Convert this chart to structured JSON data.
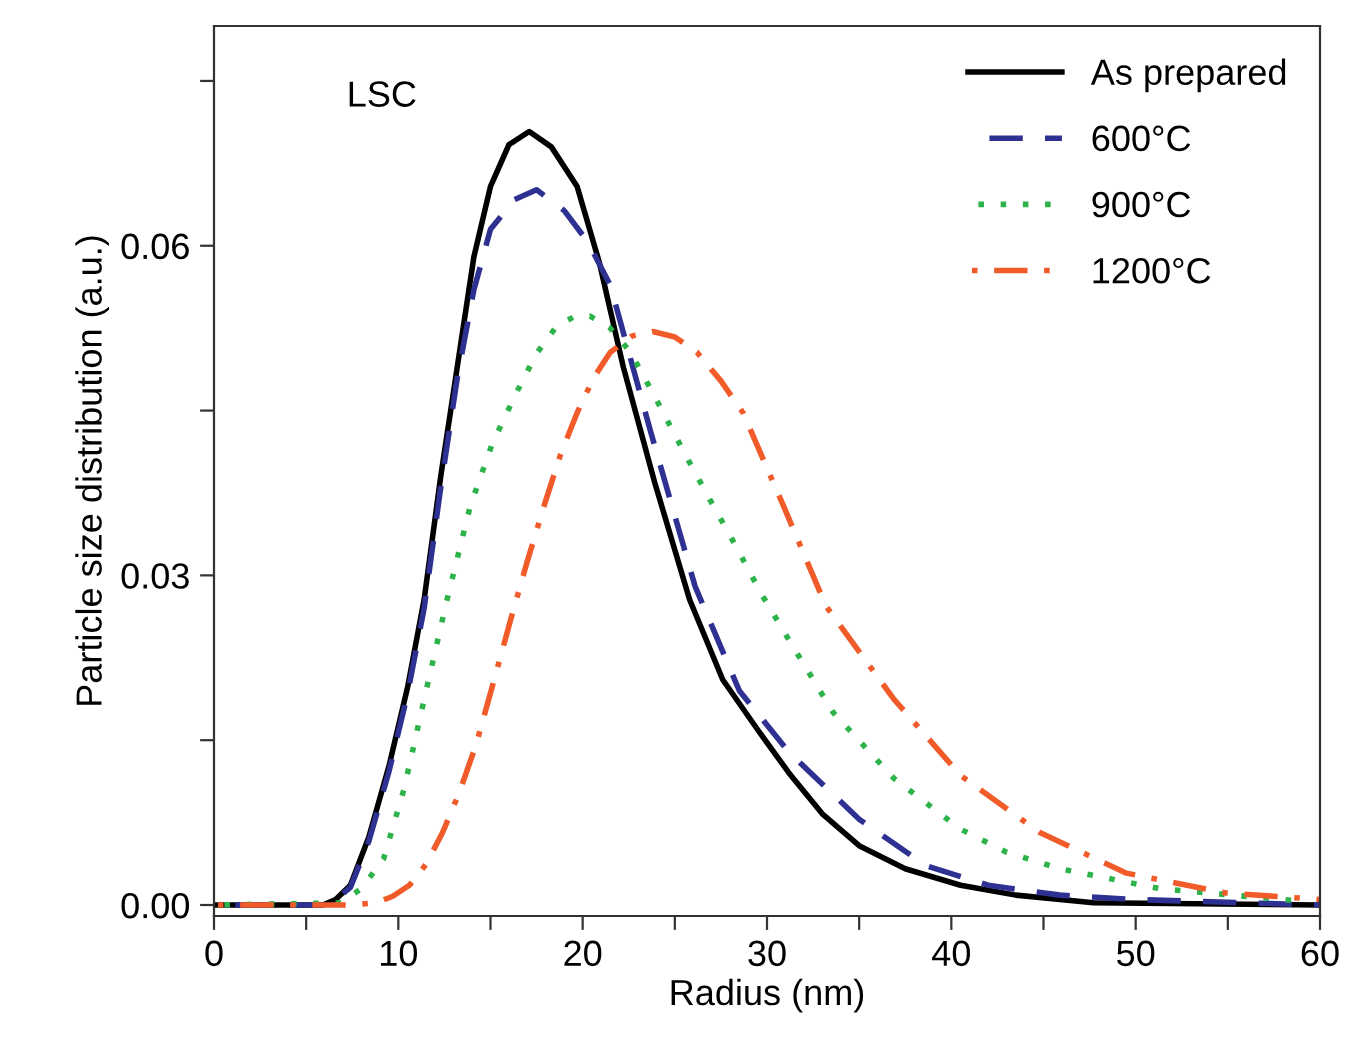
{
  "chart_data": {
    "type": "line",
    "xlabel": "Radius (nm)",
    "ylabel": "Particle size distribution (a.u.)",
    "annotations": [
      "LSC"
    ],
    "xlim": [
      0,
      60
    ],
    "ylim": [
      -0.001,
      0.08
    ],
    "xticks": [
      0,
      {
        "value": 5,
        "label": null
      },
      10,
      {
        "value": 15,
        "label": null
      },
      20,
      {
        "value": 25,
        "label": null
      },
      30,
      {
        "value": 35,
        "label": null
      },
      40,
      {
        "value": 45,
        "label": null
      },
      50,
      {
        "value": 55,
        "label": null
      },
      60
    ],
    "yticks": [
      {
        "value": 0,
        "label": "0.00"
      },
      {
        "value": 0.015,
        "label": null
      },
      {
        "value": 0.03,
        "label": "0.03"
      },
      {
        "value": 0.045,
        "label": null
      },
      {
        "value": 0.06,
        "label": "0.06"
      },
      {
        "value": 0.075,
        "label": null
      }
    ],
    "grid": false,
    "legend": "top right",
    "series": [
      {
        "name": "As prepared",
        "color": "#000000",
        "line_style": "solid",
        "x": [
          0,
          5.9,
          6.6,
          7.4,
          8.4,
          9.5,
          10.5,
          11.4,
          12.3,
          13.2,
          14.1,
          15,
          16,
          17.1,
          18.3,
          19.7,
          20.9,
          22.2,
          23.9,
          25.8,
          27.6,
          29.6,
          31.2,
          33,
          35,
          37.5,
          40.5,
          43.5,
          47.7,
          60
        ],
        "values": [
          0,
          0,
          0.0005,
          0.0018,
          0.0062,
          0.0127,
          0.0198,
          0.0278,
          0.039,
          0.049,
          0.059,
          0.0654,
          0.0692,
          0.0704,
          0.069,
          0.0654,
          0.0585,
          0.049,
          0.0385,
          0.0278,
          0.0205,
          0.0157,
          0.012,
          0.0083,
          0.0054,
          0.0033,
          0.0018,
          0.0009,
          0.0002,
          0
        ]
      },
      {
        "name": "600°C",
        "color": "#2e3192",
        "line_style": "dashed",
        "x": [
          0,
          5.9,
          6.6,
          7.4,
          8.4,
          9.5,
          10.5,
          11.4,
          12.3,
          13.2,
          14.1,
          15,
          16.3,
          17.5,
          19,
          20.3,
          21.5,
          23.7,
          26.1,
          28.5,
          31.2,
          35,
          38.6,
          42,
          45.9,
          50,
          56,
          60
        ],
        "values": [
          0,
          0,
          0.0005,
          0.0016,
          0.0058,
          0.0122,
          0.0192,
          0.027,
          0.038,
          0.048,
          0.056,
          0.0615,
          0.0642,
          0.0651,
          0.0632,
          0.0603,
          0.0564,
          0.043,
          0.029,
          0.0195,
          0.0139,
          0.0078,
          0.0036,
          0.0018,
          0.0009,
          0.0005,
          0.0002,
          0
        ]
      },
      {
        "name": "900°C",
        "color": "#2db34a",
        "line_style": "dotted",
        "x": [
          0,
          6.9,
          8,
          9.2,
          10.3,
          11.4,
          12.6,
          13.9,
          15.1,
          16.4,
          17.5,
          18.6,
          19.5,
          20.4,
          21.5,
          22.6,
          24,
          25.5,
          26.9,
          28.3,
          29.7,
          31.2,
          33.6,
          36.9,
          40.5,
          43,
          45.9,
          51.3,
          58.6
        ],
        "values": [
          0,
          0.0002,
          0.0015,
          0.0042,
          0.0105,
          0.0187,
          0.0275,
          0.0363,
          0.042,
          0.0466,
          0.0502,
          0.0527,
          0.0535,
          0.0536,
          0.0525,
          0.0503,
          0.046,
          0.0412,
          0.0369,
          0.0327,
          0.0283,
          0.0241,
          0.0175,
          0.0115,
          0.0069,
          0.0048,
          0.0033,
          0.0015,
          0.0004
        ]
      },
      {
        "name": "1200°C",
        "color": "#f15a29",
        "line_style": "dashdot",
        "x": [
          0,
          6,
          7.5,
          8.8,
          9.7,
          10.6,
          11.5,
          12.4,
          13.3,
          14.2,
          15.1,
          16.1,
          17,
          17.9,
          18.8,
          19.7,
          20.6,
          21.5,
          22.7,
          23.8,
          25,
          26.2,
          27.5,
          28.7,
          30.9,
          33.2,
          36.9,
          40.5,
          44.8,
          49.5,
          54.9,
          60
        ],
        "values": [
          0,
          0,
          0,
          0.0002,
          0.0008,
          0.0018,
          0.0037,
          0.0066,
          0.0102,
          0.0145,
          0.0199,
          0.026,
          0.0313,
          0.0363,
          0.041,
          0.0448,
          0.048,
          0.0503,
          0.0518,
          0.0522,
          0.0517,
          0.0503,
          0.0477,
          0.0448,
          0.0363,
          0.0272,
          0.0187,
          0.0118,
          0.0066,
          0.0029,
          0.0011,
          0.0005
        ]
      }
    ]
  }
}
